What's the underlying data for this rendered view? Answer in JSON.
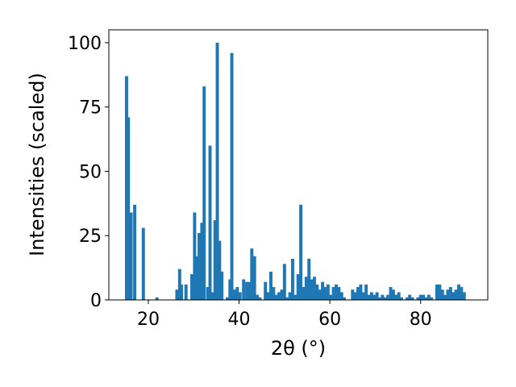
{
  "chart_data": {
    "type": "bar",
    "title": "",
    "xlabel": "2θ (°)",
    "ylabel": "Intensities (scaled)",
    "xlim": [
      11.3,
      94.8
    ],
    "ylim": [
      0,
      105
    ],
    "xticks": [
      "20",
      "40",
      "60",
      "80"
    ],
    "xtick_values": [
      20,
      40,
      60,
      80
    ],
    "yticks": [
      "0",
      "25",
      "50",
      "75",
      "100"
    ],
    "ytick_values": [
      0,
      25,
      50,
      75,
      100
    ],
    "bar_width_deg": 0.7,
    "color": "#1f77b4",
    "grid": false,
    "x": [
      15.2,
      15.6,
      16.2,
      17.0,
      18.9,
      21.9,
      26.3,
      26.9,
      27.3,
      28.3,
      29.6,
      30.2,
      30.7,
      31.2,
      31.8,
      32.3,
      33.1,
      33.6,
      34.2,
      34.7,
      35.2,
      35.7,
      36.2,
      37.4,
      38.0,
      38.4,
      39.0,
      39.6,
      40.2,
      41.0,
      41.7,
      42.2,
      42.8,
      43.4,
      44.0,
      44.6,
      45.2,
      45.8,
      46.4,
      47.0,
      47.6,
      48.2,
      48.8,
      49.4,
      50.0,
      50.6,
      51.2,
      51.8,
      52.4,
      53.0,
      53.6,
      54.2,
      54.8,
      55.4,
      56.0,
      56.6,
      57.2,
      57.8,
      58.4,
      59.0,
      59.6,
      60.2,
      60.8,
      61.4,
      62.0,
      62.6,
      63.2,
      63.8,
      64.4,
      65.0,
      65.6,
      66.2,
      66.8,
      67.4,
      68.0,
      68.6,
      69.2,
      69.8,
      70.4,
      71.0,
      71.6,
      72.2,
      72.8,
      73.4,
      74.0,
      74.6,
      75.2,
      75.8,
      76.4,
      77.0,
      77.6,
      78.2,
      78.8,
      79.4,
      80.0,
      80.6,
      81.2,
      81.8,
      82.4,
      83.0,
      83.6,
      84.2,
      84.8,
      85.4,
      86.0,
      86.6,
      87.2,
      87.8,
      88.4,
      89.0,
      89.6
    ],
    "values": [
      87,
      71,
      34,
      37,
      28,
      1,
      4,
      12,
      6,
      6,
      10,
      34,
      17,
      26,
      30,
      83,
      5,
      60,
      3,
      31,
      100,
      23,
      11,
      1,
      8,
      96,
      4,
      5,
      3,
      8,
      7,
      7,
      20,
      17,
      2,
      1,
      0,
      7,
      3,
      11,
      5,
      2,
      3,
      4,
      14,
      1,
      3,
      16,
      2,
      10,
      37,
      5,
      9,
      16,
      8,
      9,
      6,
      4,
      7,
      5,
      6,
      2,
      5,
      6,
      5,
      3,
      1,
      0,
      0,
      4,
      3,
      5,
      6,
      3,
      6,
      2,
      3,
      2,
      3,
      1,
      2,
      1,
      2,
      5,
      4,
      2,
      3,
      1,
      0,
      1,
      2,
      1,
      0,
      1,
      2,
      2,
      1,
      2,
      1,
      0,
      6,
      6,
      4,
      2,
      4,
      5,
      3,
      4,
      6,
      5,
      3
    ]
  }
}
